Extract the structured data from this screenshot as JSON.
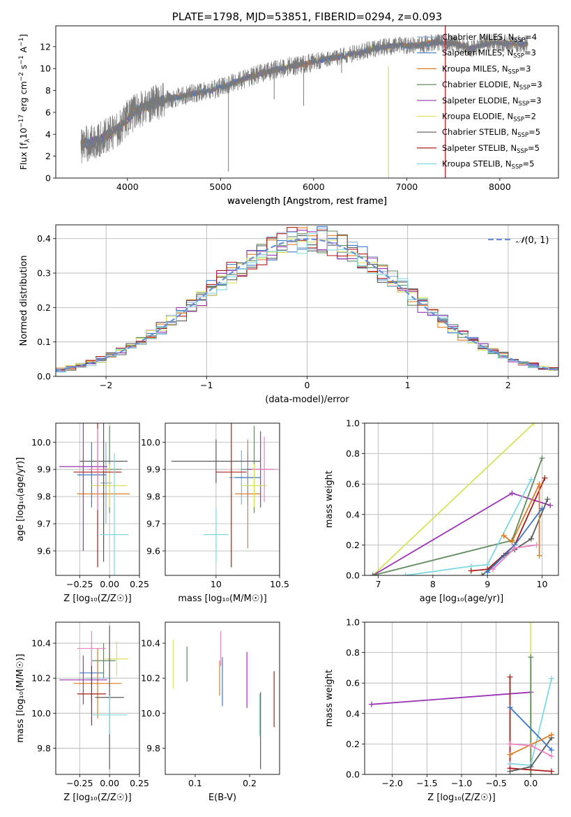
{
  "figure_title": "PLATE=1798, MJD=53851, FIBERID=0294, z=0.093",
  "colors": {
    "chabrier_miles": "#8fb0d0",
    "salpeter_miles": "#3a78c8",
    "kroupa_miles": "#e07b20",
    "chabrier_elodie": "#5f8a5f",
    "salpeter_elodie": "#9a35b5",
    "kroupa_elodie": "#d6e35a",
    "chabrier_stelib": "#5a5a5a",
    "salpeter_stelib": "#b01a1a",
    "kroupa_stelib": "#80d8e0",
    "kroupa_miles_pink": "#ee82c2",
    "data_grey": "#7a7a7a",
    "normal_curve": "#6a8fd8",
    "grid": "#b0b0b0"
  },
  "chart_data": [
    {
      "id": "spectrum",
      "type": "line",
      "title": "PLATE=1798, MJD=53851, FIBERID=0294, z=0.093",
      "xlabel": "wavelength [Angstrom, rest frame]",
      "ylabel": "Flux [f_λ 10⁻¹⁷ erg cm⁻² s⁻¹ A⁻¹]",
      "ylabel_parts": {
        "a": "Flux [f",
        "b": "λ",
        "c": "10",
        "d": "−17",
        "e": " erg cm",
        "f": "−2",
        "g": " s",
        "h": "−1",
        "i": " A",
        "j": "−1",
        "k": "]"
      },
      "xlim": [
        3230,
        8630
      ],
      "ylim": [
        0,
        13.9
      ],
      "xticks": [
        4000,
        5000,
        6000,
        7000,
        8000
      ],
      "yticks": [
        0,
        2,
        4,
        6,
        8,
        10,
        12
      ],
      "grid": false,
      "legend_position": "top-right",
      "legend": [
        {
          "prefix": "Chabrier MILES, N",
          "sub": "SSP",
          "suffix": "=4",
          "color_key": "chabrier_miles"
        },
        {
          "prefix": "Salpeter MILES, N",
          "sub": "SSP",
          "suffix": "=3",
          "color_key": "salpeter_miles"
        },
        {
          "prefix": "Kroupa MILES, N",
          "sub": "SSP",
          "suffix": "=3",
          "color_key": "kroupa_miles"
        },
        {
          "prefix": "Chabrier ELODIE, N",
          "sub": "SSP",
          "suffix": "=3",
          "color_key": "chabrier_elodie"
        },
        {
          "prefix": "Salpeter ELODIE, N",
          "sub": "SSP",
          "suffix": "=3",
          "color_key": "salpeter_elodie"
        },
        {
          "prefix": "Kroupa ELODIE, N",
          "sub": "SSP",
          "suffix": "=2",
          "color_key": "kroupa_elodie"
        },
        {
          "prefix": "Chabrier STELIB, N",
          "sub": "SSP",
          "suffix": "=5",
          "color_key": "chabrier_stelib"
        },
        {
          "prefix": "Salpeter STELIB, N",
          "sub": "SSP",
          "suffix": "=5",
          "color_key": "salpeter_stelib"
        },
        {
          "prefix": "Kroupa STELIB, N",
          "sub": "SSP",
          "suffix": "=5",
          "color_key": "kroupa_stelib"
        }
      ],
      "continuum": [
        [
          3500,
          3.0
        ],
        [
          3700,
          3.4
        ],
        [
          3800,
          4.0
        ],
        [
          3900,
          4.5
        ],
        [
          4000,
          5.5
        ],
        [
          4100,
          6.2
        ],
        [
          4300,
          6.9
        ],
        [
          4500,
          7.3
        ],
        [
          4700,
          7.7
        ],
        [
          4900,
          8.0
        ],
        [
          5100,
          8.6
        ],
        [
          5300,
          9.2
        ],
        [
          5500,
          9.7
        ],
        [
          5700,
          10.1
        ],
        [
          5900,
          10.4
        ],
        [
          6100,
          10.8
        ],
        [
          6300,
          11.1
        ],
        [
          6500,
          11.5
        ],
        [
          6700,
          11.9
        ],
        [
          6900,
          12.1
        ],
        [
          7100,
          12.1
        ],
        [
          7300,
          12.4
        ],
        [
          7500,
          12.3
        ],
        [
          7700,
          11.8
        ],
        [
          7900,
          12.4
        ],
        [
          8100,
          12.3
        ],
        [
          8300,
          12.2
        ]
      ],
      "data_end": 8300,
      "spikes": [
        {
          "x": 5085,
          "y": 0.6
        },
        {
          "x": 5576,
          "y": 7.2
        },
        {
          "x": 5893,
          "y": 6.6
        },
        {
          "x": 6300,
          "y": 9.6
        }
      ],
      "vertical_lines": [
        {
          "x": 6805,
          "y_from": 0,
          "y_to": 10.2,
          "color_key": "kroupa_elodie"
        },
        {
          "x": 7415,
          "y_from": 0,
          "y_to": 13.9,
          "color_key": "salpeter_stelib"
        }
      ]
    },
    {
      "id": "residuals",
      "type": "line",
      "xlabel": "(data-model)/error",
      "ylabel": "Normed distribution",
      "xlim": [
        -2.5,
        2.5
      ],
      "ylim": [
        0,
        0.44
      ],
      "xticks": [
        -2,
        -1,
        0,
        1,
        2
      ],
      "yticks": [
        0.0,
        0.1,
        0.2,
        0.3,
        0.4
      ],
      "grid": true,
      "bin_width": 0.1,
      "legend_position": "top-right",
      "reference": {
        "label_prefix": "𝒩",
        "label_suffix": "(0, 1)",
        "mu": 0,
        "sigma": 1,
        "style": "dashed",
        "color_key": "normal_curve"
      },
      "histograms": [
        {
          "color_key": "chabrier_miles"
        },
        {
          "color_key": "salpeter_miles"
        },
        {
          "color_key": "kroupa_miles"
        },
        {
          "color_key": "chabrier_elodie"
        },
        {
          "color_key": "salpeter_elodie"
        },
        {
          "color_key": "kroupa_elodie"
        },
        {
          "color_key": "chabrier_stelib"
        },
        {
          "color_key": "salpeter_stelib"
        },
        {
          "color_key": "kroupa_stelib"
        }
      ]
    },
    {
      "id": "z_age",
      "type": "scatter",
      "xlabel": "Z [log₁₀(Z/Z☉)]",
      "ylabel": "age [log₁₀(age/yr)]",
      "xlim": [
        -0.45,
        0.25
      ],
      "ylim": [
        9.51,
        10.07
      ],
      "xticks": [
        -0.25,
        0.0,
        0.25
      ],
      "xtick_labels": [
        "−0.25",
        "0.00",
        "0.25"
      ],
      "yticks": [
        9.6,
        9.7,
        9.8,
        9.9,
        10.0
      ],
      "grid": true,
      "points": [
        {
          "x": -0.03,
          "y": 9.85,
          "xerr": 0.05,
          "yerr": 0.15,
          "color_key": "chabrier_miles"
        },
        {
          "x": -0.15,
          "y": 9.88,
          "xerr": 0.12,
          "yerr": 0.12,
          "color_key": "salpeter_miles"
        },
        {
          "x": -0.05,
          "y": 9.81,
          "xerr": 0.22,
          "yerr": 0.2,
          "color_key": "kroupa_miles"
        },
        {
          "x": 0.0,
          "y": 9.9,
          "xerr": 0.1,
          "yerr": 0.16,
          "color_key": "chabrier_elodie"
        },
        {
          "x": -0.22,
          "y": 9.91,
          "xerr": 0.2,
          "yerr": 0.31,
          "color_key": "salpeter_elodie"
        },
        {
          "x": 0.0,
          "y": 9.84,
          "xerr": 0.15,
          "yerr": 0.08,
          "color_key": "kroupa_elodie"
        },
        {
          "x": -0.05,
          "y": 9.93,
          "xerr": 0.2,
          "yerr": 0.37,
          "color_key": "chabrier_stelib"
        },
        {
          "x": -0.1,
          "y": 9.89,
          "xerr": 0.2,
          "yerr": 0.35,
          "color_key": "salpeter_stelib"
        },
        {
          "x": 0.04,
          "y": 9.66,
          "xerr": 0.12,
          "yerr": 0.3,
          "color_key": "kroupa_stelib"
        },
        {
          "x": -0.1,
          "y": 9.9,
          "xerr": 0.08,
          "yerr": 0.15,
          "color_key": "kroupa_miles_pink"
        }
      ]
    },
    {
      "id": "mass_age",
      "type": "scatter",
      "xlabel": "mass [log₁₀(M/M☉)]",
      "ylabel": "",
      "xlim": [
        9.6,
        10.5
      ],
      "ylim": [
        9.51,
        10.07
      ],
      "xticks": [
        10.0,
        10.5
      ],
      "yticks": [
        9.6,
        9.7,
        9.8,
        9.9,
        10.0
      ],
      "grid": true,
      "points": [
        {
          "x": 10.2,
          "y": 9.87,
          "xerr": 0.1,
          "yerr": 0.1,
          "color_key": "chabrier_miles"
        },
        {
          "x": 10.25,
          "y": 9.87,
          "xerr": 0.1,
          "yerr": 0.1,
          "color_key": "salpeter_miles"
        },
        {
          "x": 10.25,
          "y": 9.81,
          "xerr": 0.1,
          "yerr": 0.2,
          "color_key": "kroupa_miles"
        },
        {
          "x": 10.3,
          "y": 9.9,
          "xerr": 0.1,
          "yerr": 0.16,
          "color_key": "chabrier_elodie"
        },
        {
          "x": 10.35,
          "y": 9.9,
          "xerr": 0.1,
          "yerr": 0.14,
          "color_key": "salpeter_elodie"
        },
        {
          "x": 10.3,
          "y": 9.84,
          "xerr": 0.1,
          "yerr": 0.08,
          "color_key": "kroupa_elodie"
        },
        {
          "x": 10.0,
          "y": 9.93,
          "xerr": 0.35,
          "yerr": 0.08,
          "color_key": "chabrier_stelib"
        },
        {
          "x": 10.12,
          "y": 9.89,
          "xerr": 0.12,
          "yerr": 0.35,
          "color_key": "salpeter_stelib"
        },
        {
          "x": 10.0,
          "y": 9.66,
          "xerr": 0.1,
          "yerr": 0.1,
          "color_key": "kroupa_stelib"
        },
        {
          "x": 10.38,
          "y": 9.9,
          "xerr": 0.1,
          "yerr": 0.12,
          "color_key": "kroupa_miles_pink"
        }
      ]
    },
    {
      "id": "age_weight",
      "type": "line",
      "xlabel": "age [log₁₀(age/yr)]",
      "ylabel": "mass weight",
      "xlim": [
        6.75,
        10.3
      ],
      "ylim": [
        0,
        1.0
      ],
      "xticks": [
        7,
        8,
        9,
        10
      ],
      "yticks": [
        0.0,
        0.2,
        0.4,
        0.6,
        0.8,
        1.0
      ],
      "grid": true,
      "series": [
        {
          "color_key": "kroupa_elodie",
          "x": [
            6.9,
            9.85
          ],
          "y": [
            0.0,
            1.0
          ]
        },
        {
          "color_key": "salpeter_elodie",
          "x": [
            6.9,
            9.45,
            10.15
          ],
          "y": [
            0.0,
            0.54,
            0.46
          ]
        },
        {
          "color_key": "chabrier_elodie",
          "x": [
            6.9,
            9.45,
            10.0
          ],
          "y": [
            0.0,
            0.23,
            0.77
          ]
        },
        {
          "color_key": "kroupa_stelib",
          "x": [
            7.5,
            8.7,
            9.0,
            9.8
          ],
          "y": [
            0.0,
            0.06,
            0.07,
            0.63
          ]
        },
        {
          "color_key": "salpeter_stelib",
          "x": [
            8.7,
            9.0,
            9.5,
            10.05
          ],
          "y": [
            0.03,
            0.04,
            0.2,
            0.64
          ]
        },
        {
          "color_key": "chabrier_stelib",
          "x": [
            8.9,
            9.3,
            9.5,
            9.8,
            10.1
          ],
          "y": [
            0.0,
            0.13,
            0.17,
            0.24,
            0.5
          ]
        },
        {
          "color_key": "kroupa_miles",
          "x": [
            9.3,
            9.45,
            9.95,
            9.95
          ],
          "y": [
            0.26,
            0.22,
            0.6,
            0.13
          ]
        },
        {
          "color_key": "salpeter_miles",
          "x": [
            9.0,
            9.5,
            10.0
          ],
          "y": [
            0.02,
            0.2,
            0.44
          ]
        },
        {
          "color_key": "kroupa_miles_pink",
          "x": [
            9.1,
            9.5,
            9.9
          ],
          "y": [
            0.04,
            0.18,
            0.2
          ]
        }
      ]
    },
    {
      "id": "z_mass",
      "type": "scatter",
      "xlabel": "Z [log₁₀(Z/Z☉)]",
      "ylabel": "mass [log₁₀(M/M☉)]",
      "xlim": [
        -0.45,
        0.25
      ],
      "ylim": [
        9.65,
        10.52
      ],
      "xticks": [
        -0.25,
        0.0,
        0.25
      ],
      "xtick_labels": [
        "−0.25",
        "0.00",
        "0.25"
      ],
      "yticks": [
        9.8,
        10.0,
        10.2,
        10.4
      ],
      "grid": true,
      "points": [
        {
          "x": -0.1,
          "y": 10.2,
          "xerr": 0.1,
          "yerr": 0.1,
          "color_key": "chabrier_miles"
        },
        {
          "x": -0.15,
          "y": 10.23,
          "xerr": 0.1,
          "yerr": 0.17,
          "color_key": "salpeter_miles"
        },
        {
          "x": -0.1,
          "y": 10.17,
          "xerr": 0.2,
          "yerr": 0.2,
          "color_key": "kroupa_miles"
        },
        {
          "x": -0.05,
          "y": 10.3,
          "xerr": 0.1,
          "yerr": 0.1,
          "color_key": "chabrier_elodie"
        },
        {
          "x": -0.22,
          "y": 10.19,
          "xerr": 0.2,
          "yerr": 0.14,
          "color_key": "salpeter_elodie"
        },
        {
          "x": 0.06,
          "y": 10.31,
          "xerr": 0.1,
          "yerr": 0.1,
          "color_key": "kroupa_elodie"
        },
        {
          "x": 0.0,
          "y": 10.09,
          "xerr": 0.12,
          "yerr": 0.41,
          "color_key": "chabrier_stelib"
        },
        {
          "x": -0.15,
          "y": 10.11,
          "xerr": 0.12,
          "yerr": 0.18,
          "color_key": "salpeter_stelib"
        },
        {
          "x": 0.0,
          "y": 9.99,
          "xerr": 0.15,
          "yerr": 0.11,
          "color_key": "kroupa_stelib"
        },
        {
          "x": -0.15,
          "y": 10.37,
          "xerr": 0.12,
          "yerr": 0.1,
          "color_key": "kroupa_miles_pink"
        }
      ]
    },
    {
      "id": "ebv_mass",
      "type": "scatter",
      "xlabel": "E(B-V)",
      "ylabel": "",
      "xlim": [
        0.045,
        0.255
      ],
      "ylim": [
        9.65,
        10.52
      ],
      "xticks": [
        0.1,
        0.2
      ],
      "yticks": [
        9.8,
        10.0,
        10.2,
        10.4
      ],
      "grid": false,
      "points": [
        {
          "x": 0.06,
          "y": 10.28,
          "yerr": 0.14,
          "color_key": "kroupa_elodie"
        },
        {
          "x": 0.085,
          "y": 10.28,
          "yerr": 0.1,
          "color_key": "chabrier_elodie"
        },
        {
          "x": 0.145,
          "y": 10.2,
          "yerr": 0.1,
          "color_key": "kroupa_miles"
        },
        {
          "x": 0.147,
          "y": 10.37,
          "yerr": 0.1,
          "color_key": "kroupa_miles_pink"
        },
        {
          "x": 0.15,
          "y": 10.18,
          "yerr": 0.14,
          "color_key": "salpeter_miles"
        },
        {
          "x": 0.195,
          "y": 10.19,
          "yerr": 0.16,
          "color_key": "salpeter_elodie"
        },
        {
          "x": 0.218,
          "y": 9.99,
          "yerr": 0.12,
          "color_key": "kroupa_stelib"
        },
        {
          "x": 0.22,
          "y": 9.9,
          "yerr": 0.22,
          "color_key": "chabrier_stelib"
        },
        {
          "x": 0.245,
          "y": 10.08,
          "yerr": 0.16,
          "color_key": "salpeter_stelib"
        }
      ]
    },
    {
      "id": "z_weight",
      "type": "line",
      "xlabel": "Z [log₁₀(Z/Z☉)]",
      "ylabel": "mass weight",
      "xlim": [
        -2.4,
        0.4
      ],
      "ylim": [
        0,
        1.0
      ],
      "xticks": [
        -2.0,
        -1.5,
        -1.0,
        -0.5,
        0.0
      ],
      "xtick_labels": [
        "−2.0",
        "−1.5",
        "−1.0",
        "−0.5",
        "0.0"
      ],
      "yticks": [
        0.0,
        0.2,
        0.4,
        0.6,
        0.8,
        1.0
      ],
      "grid": true,
      "series": [
        {
          "color_key": "salpeter_elodie",
          "x": [
            -2.3,
            0.0
          ],
          "y": [
            0.46,
            0.54
          ]
        },
        {
          "color_key": "kroupa_elodie",
          "x": [
            0.0,
            0.0
          ],
          "y": [
            0.0,
            1.0
          ]
        },
        {
          "color_key": "chabrier_elodie",
          "x": [
            0.0,
            0.0
          ],
          "y": [
            0.0,
            0.77
          ]
        },
        {
          "color_key": "salpeter_stelib",
          "x": [
            -0.3,
            -0.3,
            0.3
          ],
          "y": [
            0.64,
            0.04,
            0.02
          ]
        },
        {
          "color_key": "kroupa_stelib",
          "x": [
            -0.3,
            0.0,
            0.3
          ],
          "y": [
            0.07,
            0.06,
            0.63
          ]
        },
        {
          "color_key": "chabrier_stelib",
          "x": [
            -0.3,
            0.0,
            0.3
          ],
          "y": [
            0.02,
            0.05,
            0.24
          ]
        },
        {
          "color_key": "salpeter_miles",
          "x": [
            -0.3,
            0.3
          ],
          "y": [
            0.44,
            0.16
          ]
        },
        {
          "color_key": "kroupa_miles",
          "x": [
            -0.3,
            0.3
          ],
          "y": [
            0.13,
            0.26
          ]
        },
        {
          "color_key": "kroupa_miles_pink",
          "x": [
            -0.3,
            0.0,
            0.3
          ],
          "y": [
            0.2,
            0.19,
            0.12
          ]
        }
      ]
    }
  ]
}
